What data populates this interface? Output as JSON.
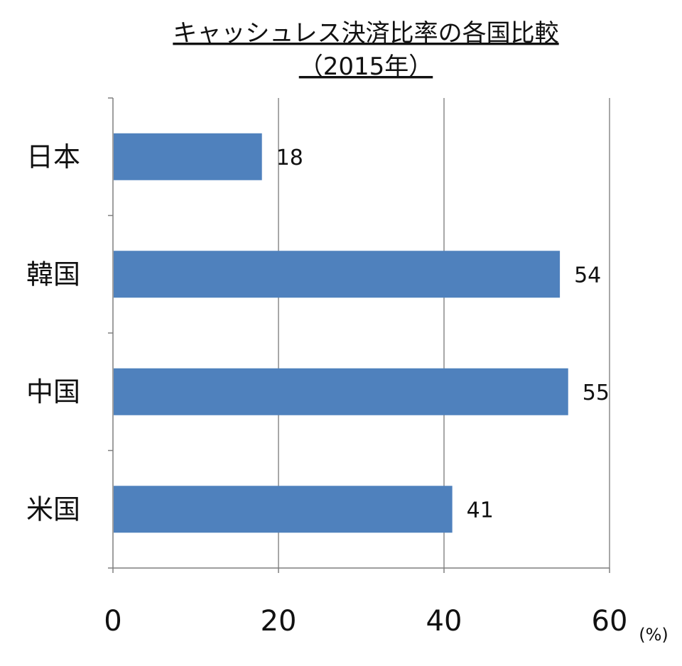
{
  "chart_data": {
    "type": "bar",
    "orientation": "horizontal",
    "title": "キャッシュレス決済比率の各国比較",
    "subtitle": "（2015年）",
    "categories": [
      "日本",
      "韓国",
      "中国",
      "米国"
    ],
    "values": [
      18,
      54,
      55,
      41
    ],
    "data_labels": [
      "18",
      "54",
      "55",
      "41"
    ],
    "xlim": [
      0,
      60
    ],
    "x_ticks": [
      0,
      20,
      40,
      60
    ],
    "x_tick_labels": [
      "0",
      "20",
      "40",
      "60"
    ],
    "unit_label": "(%)",
    "grid": "vertical",
    "legend": "none",
    "bar_color": "#4F81BD",
    "grid_color": "#8C8C8C",
    "axis_color": "#7F7F7F"
  }
}
